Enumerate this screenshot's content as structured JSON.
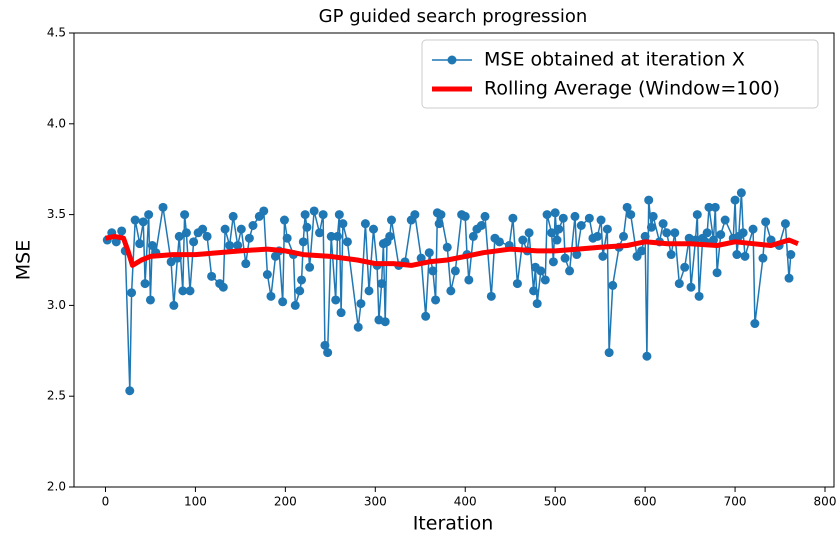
{
  "chart_data": {
    "type": "line",
    "title": "GP guided search progression",
    "xlabel": "Iteration",
    "ylabel": "MSE",
    "xlim": [
      -35,
      810
    ],
    "ylim": [
      2.0,
      4.5
    ],
    "xticks": [
      0,
      100,
      200,
      300,
      400,
      500,
      600,
      700,
      800
    ],
    "yticks": [
      {
        "value": 2.0,
        "label": "2.0"
      },
      2.5,
      {
        "value": 3.0,
        "label": "3.0"
      },
      3.5,
      {
        "value": 4.0,
        "label": "4.0"
      },
      4.5
    ],
    "legend": "upper right",
    "series": [
      {
        "name": "MSE obtained at iteration X",
        "color": "#1f77b4",
        "marker": "circle",
        "line_width": 1.5,
        "x": [
          2,
          7,
          12,
          18,
          22,
          27,
          29,
          33,
          38,
          42,
          44,
          48,
          50,
          52,
          56,
          64,
          73,
          76,
          80,
          82,
          86,
          88,
          90,
          94,
          98,
          103,
          108,
          113,
          118,
          127,
          131,
          133,
          138,
          142,
          147,
          151,
          156,
          160,
          164,
          171,
          176,
          180,
          184,
          189,
          193,
          197,
          199,
          202,
          209,
          211,
          216,
          218,
          220,
          222,
          224,
          227,
          232,
          238,
          242,
          244,
          247,
          251,
          256,
          258,
          260,
          262,
          264,
          269,
          281,
          284,
          289,
          293,
          298,
          302,
          304,
          307,
          309,
          311,
          313,
          316,
          318,
          326,
          333,
          340,
          344,
          351,
          356,
          360,
          364,
          367,
          369,
          371,
          373,
          380,
          384,
          389,
          396,
          400,
          402,
          404,
          409,
          413,
          418,
          422,
          429,
          433,
          438,
          449,
          453,
          458,
          464,
          469,
          471,
          476,
          478,
          480,
          484,
          489,
          491,
          496,
          498,
          500,
          502,
          504,
          509,
          511,
          516,
          522,
          524,
          529,
          538,
          542,
          547,
          551,
          553,
          558,
          560,
          564,
          571,
          576,
          580,
          584,
          591,
          596,
          600,
          602,
          604,
          607,
          609,
          616,
          620,
          624,
          629,
          633,
          638,
          644,
          649,
          651,
          656,
          658,
          660,
          664,
          667,
          669,
          671,
          676,
          678,
          680,
          684,
          689,
          698,
          700,
          702,
          704,
          707,
          709,
          711,
          720,
          722,
          731,
          734,
          740,
          749,
          756,
          760,
          762
        ],
        "values": [
          3.36,
          3.4,
          3.35,
          3.41,
          3.3,
          2.53,
          3.07,
          3.47,
          3.34,
          3.46,
          3.12,
          3.5,
          3.03,
          3.33,
          3.29,
          3.54,
          3.24,
          3.0,
          3.26,
          3.38,
          3.08,
          3.5,
          3.4,
          3.08,
          3.35,
          3.4,
          3.42,
          3.38,
          3.16,
          3.12,
          3.1,
          3.42,
          3.33,
          3.49,
          3.33,
          3.42,
          3.23,
          3.37,
          3.44,
          3.49,
          3.52,
          3.17,
          3.05,
          3.27,
          3.3,
          3.02,
          3.47,
          3.37,
          3.28,
          3.0,
          3.08,
          3.14,
          3.35,
          3.5,
          3.43,
          3.21,
          3.52,
          3.4,
          3.5,
          2.78,
          2.74,
          3.38,
          3.03,
          3.38,
          3.5,
          2.96,
          3.45,
          3.35,
          2.88,
          3.01,
          3.45,
          3.08,
          3.42,
          3.22,
          2.92,
          3.12,
          3.34,
          2.91,
          3.35,
          3.38,
          3.47,
          3.22,
          3.24,
          3.47,
          3.5,
          3.26,
          2.94,
          3.29,
          3.19,
          3.03,
          3.51,
          3.45,
          3.5,
          3.32,
          3.08,
          3.19,
          3.5,
          3.49,
          3.28,
          3.14,
          3.38,
          3.42,
          3.44,
          3.49,
          3.05,
          3.37,
          3.35,
          3.33,
          3.48,
          3.12,
          3.36,
          3.3,
          3.4,
          3.08,
          3.21,
          3.01,
          3.19,
          3.14,
          3.5,
          3.4,
          3.24,
          3.51,
          3.36,
          3.42,
          3.48,
          3.26,
          3.19,
          3.49,
          3.28,
          3.44,
          3.48,
          3.37,
          3.38,
          3.47,
          3.27,
          3.42,
          2.74,
          3.11,
          3.32,
          3.38,
          3.54,
          3.5,
          3.27,
          3.3,
          3.38,
          2.72,
          3.58,
          3.43,
          3.49,
          3.35,
          3.45,
          3.4,
          3.28,
          3.4,
          3.12,
          3.21,
          3.37,
          3.1,
          3.36,
          3.5,
          3.05,
          3.37,
          3.35,
          3.4,
          3.54,
          3.36,
          3.54,
          3.18,
          3.39,
          3.47,
          3.37,
          3.58,
          3.28,
          3.38,
          3.62,
          3.4,
          3.27,
          3.42,
          2.9,
          3.26,
          3.46,
          3.36,
          3.33,
          3.45,
          3.15,
          3.28
        ]
      },
      {
        "name": "Rolling Average (Window=100)",
        "color": "#ff0000",
        "marker": "none",
        "line_width": 5,
        "x": [
          0,
          10,
          20,
          25,
          30,
          40,
          50,
          75,
          100,
          125,
          150,
          180,
          200,
          220,
          250,
          280,
          300,
          320,
          340,
          360,
          380,
          400,
          420,
          450,
          480,
          500,
          525,
          550,
          580,
          600,
          625,
          650,
          680,
          700,
          720,
          740,
          760,
          770
        ],
        "values": [
          3.37,
          3.38,
          3.37,
          3.3,
          3.22,
          3.25,
          3.27,
          3.28,
          3.28,
          3.29,
          3.3,
          3.31,
          3.3,
          3.28,
          3.27,
          3.25,
          3.23,
          3.23,
          3.22,
          3.24,
          3.25,
          3.27,
          3.29,
          3.31,
          3.3,
          3.3,
          3.31,
          3.32,
          3.33,
          3.35,
          3.34,
          3.34,
          3.33,
          3.35,
          3.34,
          3.33,
          3.36,
          3.34
        ]
      }
    ]
  }
}
